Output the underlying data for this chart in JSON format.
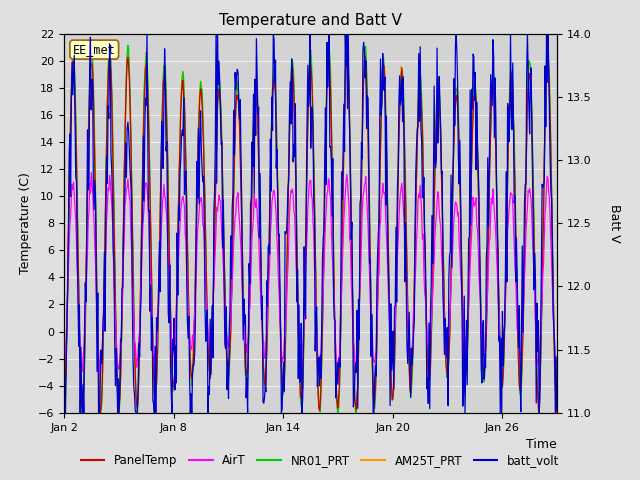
{
  "title": "Temperature and Batt V",
  "xlabel": "Time",
  "ylabel_left": "Temperature (C)",
  "ylabel_right": "Batt V",
  "ylim_left": [
    -6,
    22
  ],
  "ylim_right": [
    11.0,
    14.0
  ],
  "yticks_left": [
    -6,
    -4,
    -2,
    0,
    2,
    4,
    6,
    8,
    10,
    12,
    14,
    16,
    18,
    20,
    22
  ],
  "yticks_right": [
    11.0,
    11.5,
    12.0,
    12.5,
    13.0,
    13.5,
    14.0
  ],
  "xtick_labels": [
    "Jan 2",
    "Jan 8",
    "Jan 14",
    "Jan 20",
    "Jan 26"
  ],
  "xtick_positions": [
    1,
    7,
    13,
    19,
    25
  ],
  "station_label": "EE_met",
  "legend_entries": [
    "PanelTemp",
    "AirT",
    "NR01_PRT",
    "AM25T_PRT",
    "batt_volt"
  ],
  "colors": {
    "PanelTemp": "#cc0000",
    "AirT": "#ff00ff",
    "NR01_PRT": "#00cc00",
    "AM25T_PRT": "#ff9900",
    "batt_volt": "#0000cc"
  },
  "fig_bg_color": "#e0e0e0",
  "plot_bg_color": "#d3d3d3",
  "grid_color": "#f0f0f0",
  "n_days": 28,
  "pts_per_day": 24,
  "seed": 42,
  "linewidth": 0.9
}
